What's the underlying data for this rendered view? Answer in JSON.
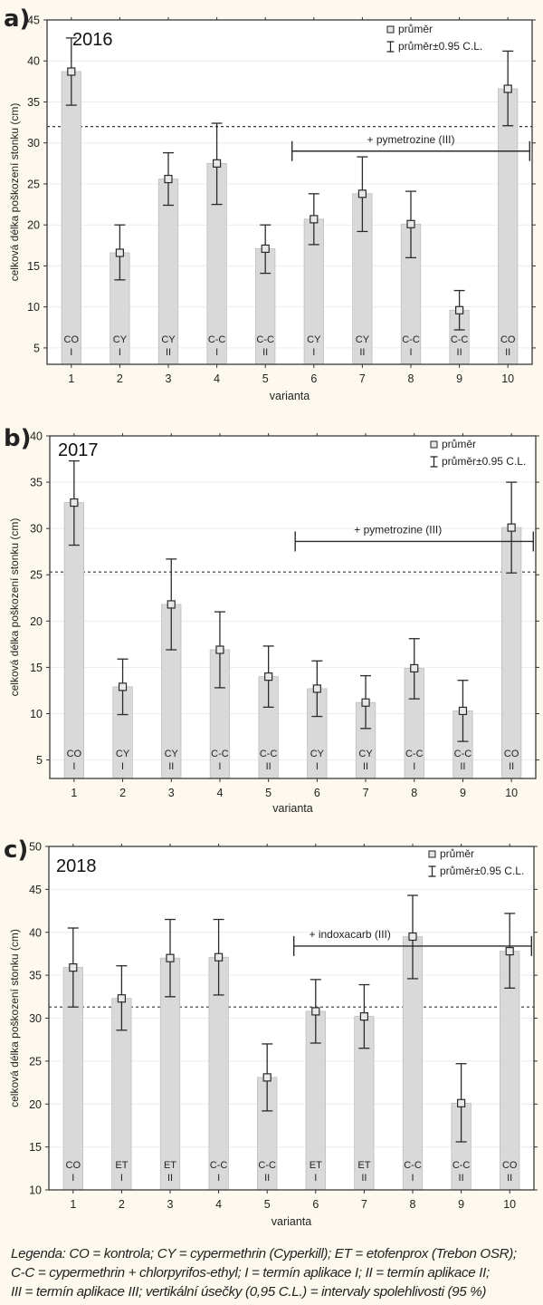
{
  "caption": {
    "lines": [
      "Legenda: CO = kontrola; CY = cypermethrin (Cyperkill); ET = etofenprox (Trebon OSR);",
      "C-C = cypermethrin + chlorpyrifos-ethyl; I = termín aplikace I; II = termín aplikace II;",
      "III = termín aplikace III; vertikální úsečky (0,95 C.L.) = intervaly spolehlivosti (95 %)"
    ]
  },
  "colors": {
    "background": "#fdf9ee",
    "plot_bg": "#ffffff",
    "bar": "#d9d9d9",
    "bar_edge": "#bdbdbd",
    "ink": "#2b2b2b",
    "grid": "#ececec"
  },
  "chart_data": [
    {
      "type": "bar",
      "panel": "a)",
      "title": "2016",
      "xlabel": "varianta",
      "ylabel": "celková délka poškození stonku (cm)",
      "ylim": [
        3,
        45
      ],
      "yticks": [
        5,
        10,
        15,
        20,
        25,
        30,
        35,
        40,
        45
      ],
      "grid": true,
      "legend": {
        "position": "top-right",
        "items": [
          "průměr",
          "průměr±0.95 C.L."
        ]
      },
      "categories": [
        "1",
        "2",
        "3",
        "4",
        "5",
        "6",
        "7",
        "8",
        "9",
        "10"
      ],
      "bar_labels": [
        [
          "CO",
          "I"
        ],
        [
          "CY",
          "I"
        ],
        [
          "CY",
          "II"
        ],
        [
          "C-C",
          "I"
        ],
        [
          "C-C",
          "II"
        ],
        [
          "CY",
          "I"
        ],
        [
          "CY",
          "II"
        ],
        [
          "C-C",
          "I"
        ],
        [
          "C-C",
          "II"
        ],
        [
          "CO",
          "II"
        ]
      ],
      "values": [
        38.7,
        16.6,
        25.6,
        27.5,
        17.1,
        20.7,
        23.8,
        20.1,
        9.6,
        36.6
      ],
      "ci_low": [
        34.6,
        13.3,
        22.4,
        22.5,
        14.1,
        17.6,
        19.2,
        16.0,
        7.2,
        32.1
      ],
      "ci_high": [
        42.8,
        20.0,
        28.8,
        32.4,
        20.0,
        23.8,
        28.3,
        24.1,
        12.0,
        41.2
      ],
      "reference_line": 32.0,
      "bracket": {
        "label": "+ pymetrozine (III)",
        "from": 6,
        "to": 10,
        "y": 29.0
      }
    },
    {
      "type": "bar",
      "panel": "b)",
      "title": "2017",
      "xlabel": "varianta",
      "ylabel": "celková délka poškození stonku (cm)",
      "ylim": [
        3,
        40
      ],
      "yticks": [
        5,
        10,
        15,
        20,
        25,
        30,
        35,
        40
      ],
      "grid": true,
      "legend": {
        "position": "top-right",
        "items": [
          "průměr",
          "průměr±0.95 C.L."
        ]
      },
      "categories": [
        "1",
        "2",
        "3",
        "4",
        "5",
        "6",
        "7",
        "8",
        "9",
        "10"
      ],
      "bar_labels": [
        [
          "CO",
          "I"
        ],
        [
          "CY",
          "I"
        ],
        [
          "CY",
          "II"
        ],
        [
          "C-C",
          "I"
        ],
        [
          "C-C",
          "II"
        ],
        [
          "CY",
          "I"
        ],
        [
          "CY",
          "II"
        ],
        [
          "C-C",
          "I"
        ],
        [
          "C-C",
          "II"
        ],
        [
          "CO",
          "II"
        ]
      ],
      "values": [
        32.8,
        12.9,
        21.8,
        16.9,
        14.0,
        12.7,
        11.2,
        14.9,
        10.3,
        30.1
      ],
      "ci_low": [
        28.2,
        9.9,
        16.9,
        12.8,
        10.7,
        9.7,
        8.4,
        11.6,
        7.0,
        25.2
      ],
      "ci_high": [
        37.3,
        15.9,
        26.7,
        21.0,
        17.3,
        15.7,
        14.1,
        18.1,
        13.6,
        35.0
      ],
      "reference_line": 25.3,
      "bracket": {
        "label": "+ pymetrozine (III)",
        "from": 6,
        "to": 10,
        "y": 28.6
      }
    },
    {
      "type": "bar",
      "panel": "c)",
      "title": "2018",
      "xlabel": "varianta",
      "ylabel": "celková délka poškození stonku (cm)",
      "ylim": [
        10,
        50
      ],
      "yticks": [
        10,
        15,
        20,
        25,
        30,
        35,
        40,
        45,
        50
      ],
      "grid": true,
      "legend": {
        "position": "top-right",
        "items": [
          "průměr",
          "průměr±0.95 C.L."
        ]
      },
      "categories": [
        "1",
        "2",
        "3",
        "4",
        "5",
        "6",
        "7",
        "8",
        "9",
        "10"
      ],
      "bar_labels": [
        [
          "CO",
          "I"
        ],
        [
          "ET",
          "I"
        ],
        [
          "ET",
          "II"
        ],
        [
          "C-C",
          "I"
        ],
        [
          "C-C",
          "II"
        ],
        [
          "ET",
          "I"
        ],
        [
          "ET",
          "II"
        ],
        [
          "C-C",
          "I"
        ],
        [
          "C-C",
          "II"
        ],
        [
          "CO",
          "II"
        ]
      ],
      "values": [
        35.9,
        32.3,
        37.0,
        37.1,
        23.1,
        30.8,
        30.2,
        39.5,
        20.1,
        37.8
      ],
      "ci_low": [
        31.3,
        28.6,
        32.5,
        32.7,
        19.2,
        27.1,
        26.5,
        34.6,
        15.6,
        33.5
      ],
      "ci_high": [
        40.5,
        36.1,
        41.5,
        41.5,
        27.0,
        34.5,
        33.9,
        44.3,
        24.7,
        42.2
      ],
      "reference_line": 31.3,
      "bracket": {
        "label": "+ indoxacarb (III)",
        "from": 6,
        "to": 10,
        "y": 38.4
      }
    }
  ]
}
